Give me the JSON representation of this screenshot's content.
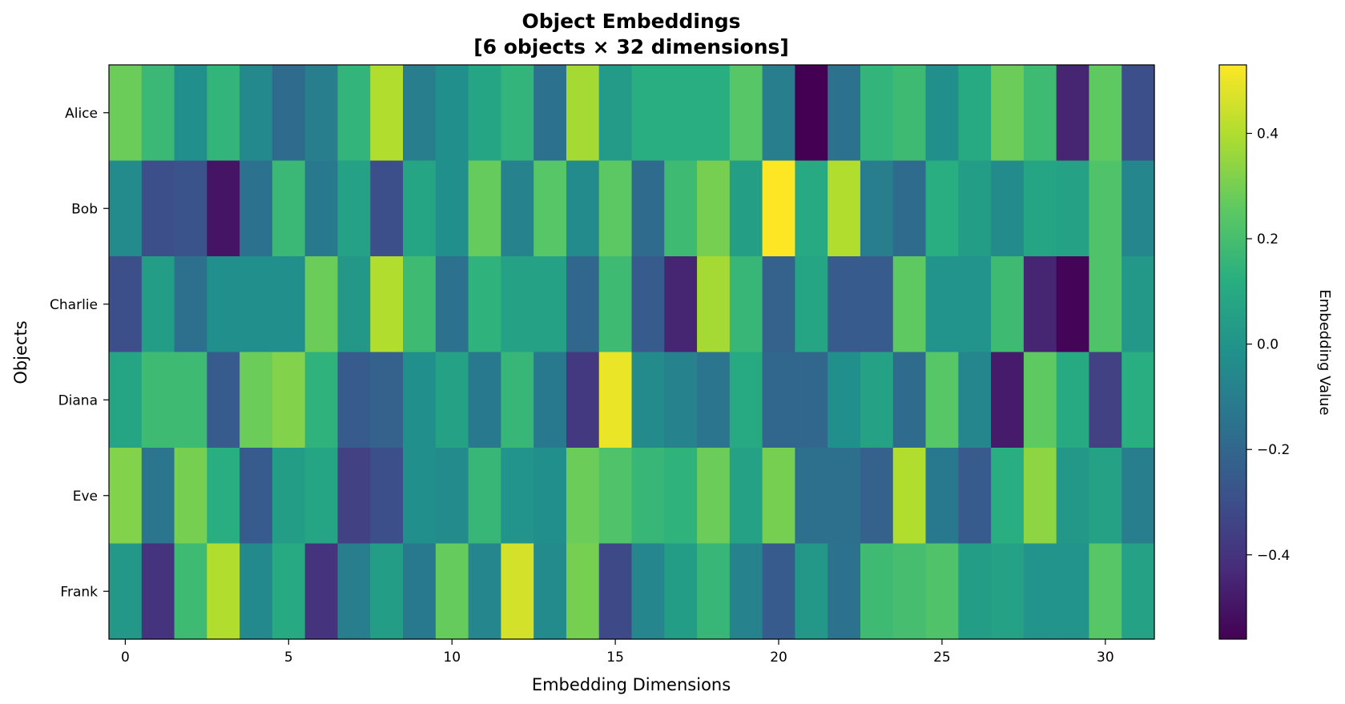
{
  "chart_data": {
    "type": "heatmap",
    "title": "Object Embeddings",
    "subtitle": "[6 objects × 32 dimensions]",
    "xlabel": "Embedding Dimensions",
    "ylabel": "Objects",
    "colorbar_label": "Embedding Value",
    "colormap": "viridis",
    "vmin": -0.56,
    "vmax": 0.53,
    "x_ticks": [
      0,
      5,
      10,
      15,
      20,
      25,
      30
    ],
    "colorbar_ticks": [
      {
        "value": 0.4,
        "label": "0.4"
      },
      {
        "value": 0.2,
        "label": "0.2"
      },
      {
        "value": 0.0,
        "label": "0.0"
      },
      {
        "value": -0.2,
        "label": "−0.2"
      },
      {
        "value": -0.4,
        "label": "−0.4"
      }
    ],
    "rows": [
      "Alice",
      "Bob",
      "Charlie",
      "Diana",
      "Eve",
      "Frank"
    ],
    "values": [
      [
        0.28,
        0.17,
        -0.02,
        0.15,
        -0.05,
        -0.18,
        -0.1,
        0.15,
        0.4,
        -0.1,
        -0.02,
        0.08,
        0.15,
        -0.15,
        0.38,
        0.03,
        0.12,
        0.12,
        0.12,
        0.24,
        -0.1,
        -0.56,
        -0.15,
        0.15,
        0.18,
        -0.02,
        0.1,
        0.28,
        0.18,
        -0.45,
        0.26,
        -0.3
      ],
      [
        -0.04,
        -0.3,
        -0.28,
        -0.5,
        -0.15,
        0.17,
        -0.12,
        0.06,
        -0.3,
        0.08,
        -0.02,
        0.27,
        -0.08,
        0.24,
        -0.04,
        0.25,
        -0.18,
        0.18,
        0.3,
        0.05,
        0.53,
        0.1,
        0.4,
        -0.1,
        -0.18,
        0.12,
        0.04,
        -0.04,
        0.08,
        0.06,
        0.22,
        -0.06
      ],
      [
        -0.3,
        0.04,
        -0.16,
        -0.02,
        -0.02,
        -0.02,
        0.28,
        0.02,
        0.4,
        0.18,
        -0.15,
        0.14,
        0.06,
        0.06,
        -0.2,
        0.18,
        -0.25,
        -0.45,
        0.38,
        0.16,
        -0.22,
        0.08,
        -0.25,
        -0.25,
        0.26,
        0.0,
        0.0,
        0.18,
        -0.45,
        -0.55,
        0.22,
        0.02
      ],
      [
        0.08,
        0.18,
        0.18,
        -0.25,
        0.28,
        0.32,
        0.14,
        -0.25,
        -0.22,
        -0.02,
        0.06,
        -0.12,
        0.16,
        -0.12,
        -0.38,
        0.5,
        -0.04,
        -0.08,
        -0.14,
        0.1,
        -0.2,
        -0.2,
        -0.02,
        0.06,
        -0.18,
        0.24,
        -0.06,
        -0.48,
        0.26,
        0.1,
        -0.35,
        0.12
      ],
      [
        0.32,
        -0.14,
        0.3,
        0.12,
        -0.25,
        0.04,
        0.08,
        -0.35,
        -0.3,
        -0.02,
        -0.04,
        0.16,
        0.0,
        -0.02,
        0.28,
        0.22,
        0.16,
        0.14,
        0.28,
        0.06,
        0.3,
        -0.16,
        -0.16,
        -0.22,
        0.4,
        -0.12,
        -0.25,
        0.12,
        0.34,
        0.02,
        0.06,
        -0.1
      ],
      [
        0.02,
        -0.4,
        0.18,
        0.4,
        -0.05,
        0.1,
        -0.4,
        -0.1,
        0.04,
        -0.12,
        0.27,
        -0.06,
        0.46,
        -0.04,
        0.3,
        -0.32,
        -0.06,
        0.04,
        0.16,
        -0.08,
        -0.25,
        0.02,
        -0.15,
        0.18,
        0.2,
        0.22,
        0.04,
        0.06,
        0.0,
        0.0,
        0.24,
        0.06
      ]
    ]
  }
}
